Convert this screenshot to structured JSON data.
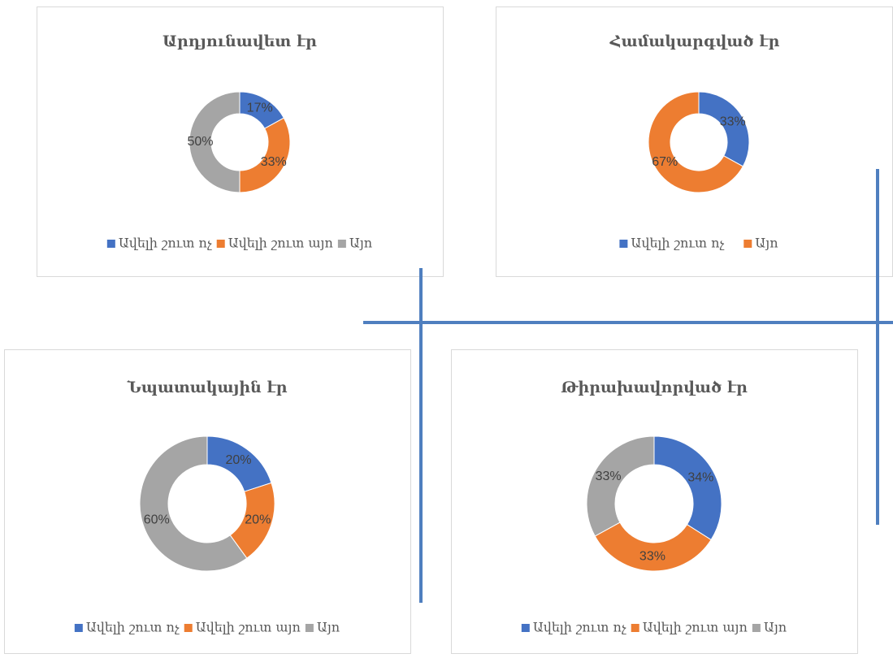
{
  "chart_data": [
    {
      "type": "pie",
      "title": "Արդյունավետ էր",
      "categories": [
        "Ավելի շուտ ոչ",
        "Ավելի շուտ այո",
        "Այո"
      ],
      "values": [
        17,
        33,
        50
      ],
      "value_labels": [
        "17%",
        "33%",
        "50%"
      ],
      "colors": [
        "#4472c4",
        "#ed7d31",
        "#a5a5a5"
      ]
    },
    {
      "type": "pie",
      "title": "Համակարգված էր",
      "categories": [
        "Ավելի շուտ ոչ",
        "Այո"
      ],
      "values": [
        33,
        67
      ],
      "value_labels": [
        "33%",
        "67%"
      ],
      "colors": [
        "#4472c4",
        "#ed7d31"
      ]
    },
    {
      "type": "pie",
      "title": "Նպատակային էր",
      "categories": [
        "Ավելի շուտ ոչ",
        "Ավելի շուտ այո",
        "Այո"
      ],
      "values": [
        20,
        20,
        60
      ],
      "value_labels": [
        "20%",
        "20%",
        "60%"
      ],
      "colors": [
        "#4472c4",
        "#ed7d31",
        "#a5a5a5"
      ]
    },
    {
      "type": "pie",
      "title": "Թիրախավորված էր",
      "categories": [
        "Ավելի շուտ ոչ",
        "Ավելի շուտ այո",
        "Այո"
      ],
      "values": [
        34,
        33,
        33
      ],
      "value_labels": [
        "34%",
        "33%",
        "33%"
      ],
      "colors": [
        "#4472c4",
        "#ed7d31",
        "#a5a5a5"
      ]
    }
  ]
}
